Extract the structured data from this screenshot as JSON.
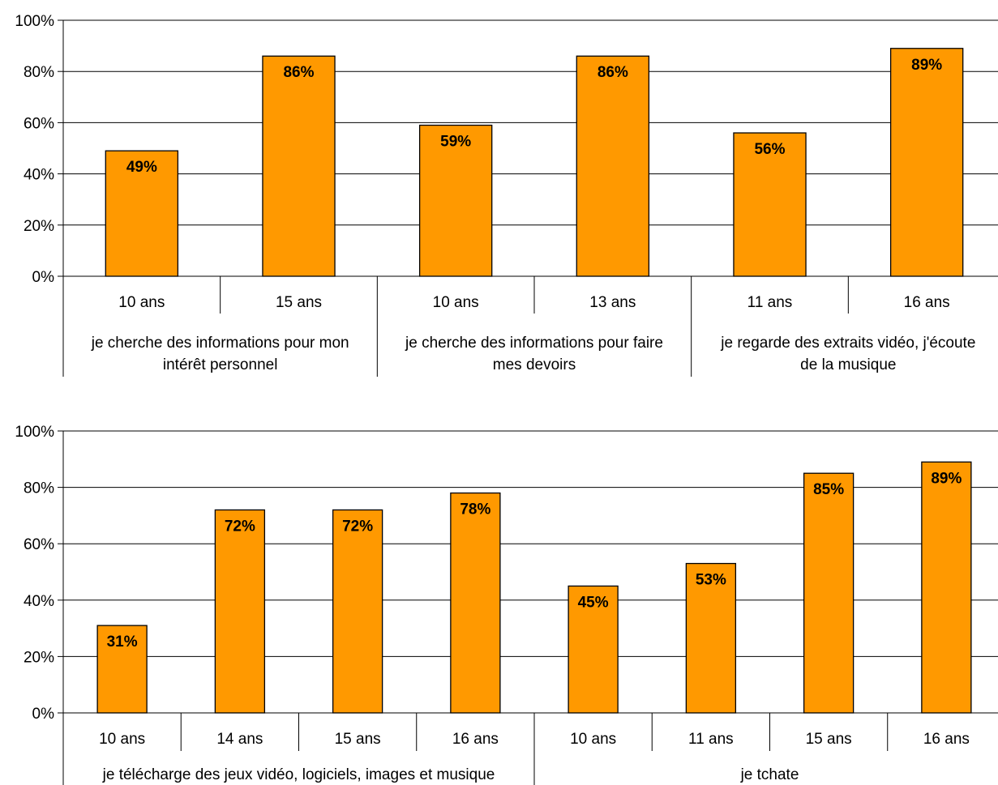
{
  "colors": {
    "bar": "#ff9900",
    "bar_stroke": "#000000",
    "grid": "#000000"
  },
  "chart_data": [
    {
      "type": "bar",
      "ylim": [
        0,
        100
      ],
      "yticks": [
        "0%",
        "20%",
        "40%",
        "60%",
        "80%",
        "100%"
      ],
      "grid": true,
      "categories": [
        "10 ans",
        "15 ans",
        "10 ans",
        "13 ans",
        "11 ans",
        "16 ans"
      ],
      "values": [
        49,
        86,
        59,
        86,
        56,
        89
      ],
      "data_labels": [
        "49%",
        "86%",
        "59%",
        "86%",
        "56%",
        "89%"
      ],
      "groups": [
        {
          "lines": [
            "je cherche des informations pour mon",
            "intérêt personnel"
          ],
          "span": 2
        },
        {
          "lines": [
            "je cherche des informations pour faire",
            "mes devoirs"
          ],
          "span": 2
        },
        {
          "lines": [
            "je regarde des extraits vidéo, j'écoute",
            "de la musique"
          ],
          "span": 2
        }
      ]
    },
    {
      "type": "bar",
      "ylim": [
        0,
        100
      ],
      "yticks": [
        "0%",
        "20%",
        "40%",
        "60%",
        "80%",
        "100%"
      ],
      "grid": true,
      "categories": [
        "10 ans",
        "14 ans",
        "15 ans",
        "16 ans",
        "10 ans",
        "11 ans",
        "15 ans",
        "16 ans"
      ],
      "values": [
        31,
        72,
        72,
        78,
        45,
        53,
        85,
        89
      ],
      "data_labels": [
        "31%",
        "72%",
        "72%",
        "78%",
        "45%",
        "53%",
        "85%",
        "89%"
      ],
      "groups": [
        {
          "lines": [
            "je télécharge des jeux vidéo, logiciels, images et musique"
          ],
          "span": 4
        },
        {
          "lines": [
            "je tchate"
          ],
          "span": 4
        }
      ]
    }
  ]
}
